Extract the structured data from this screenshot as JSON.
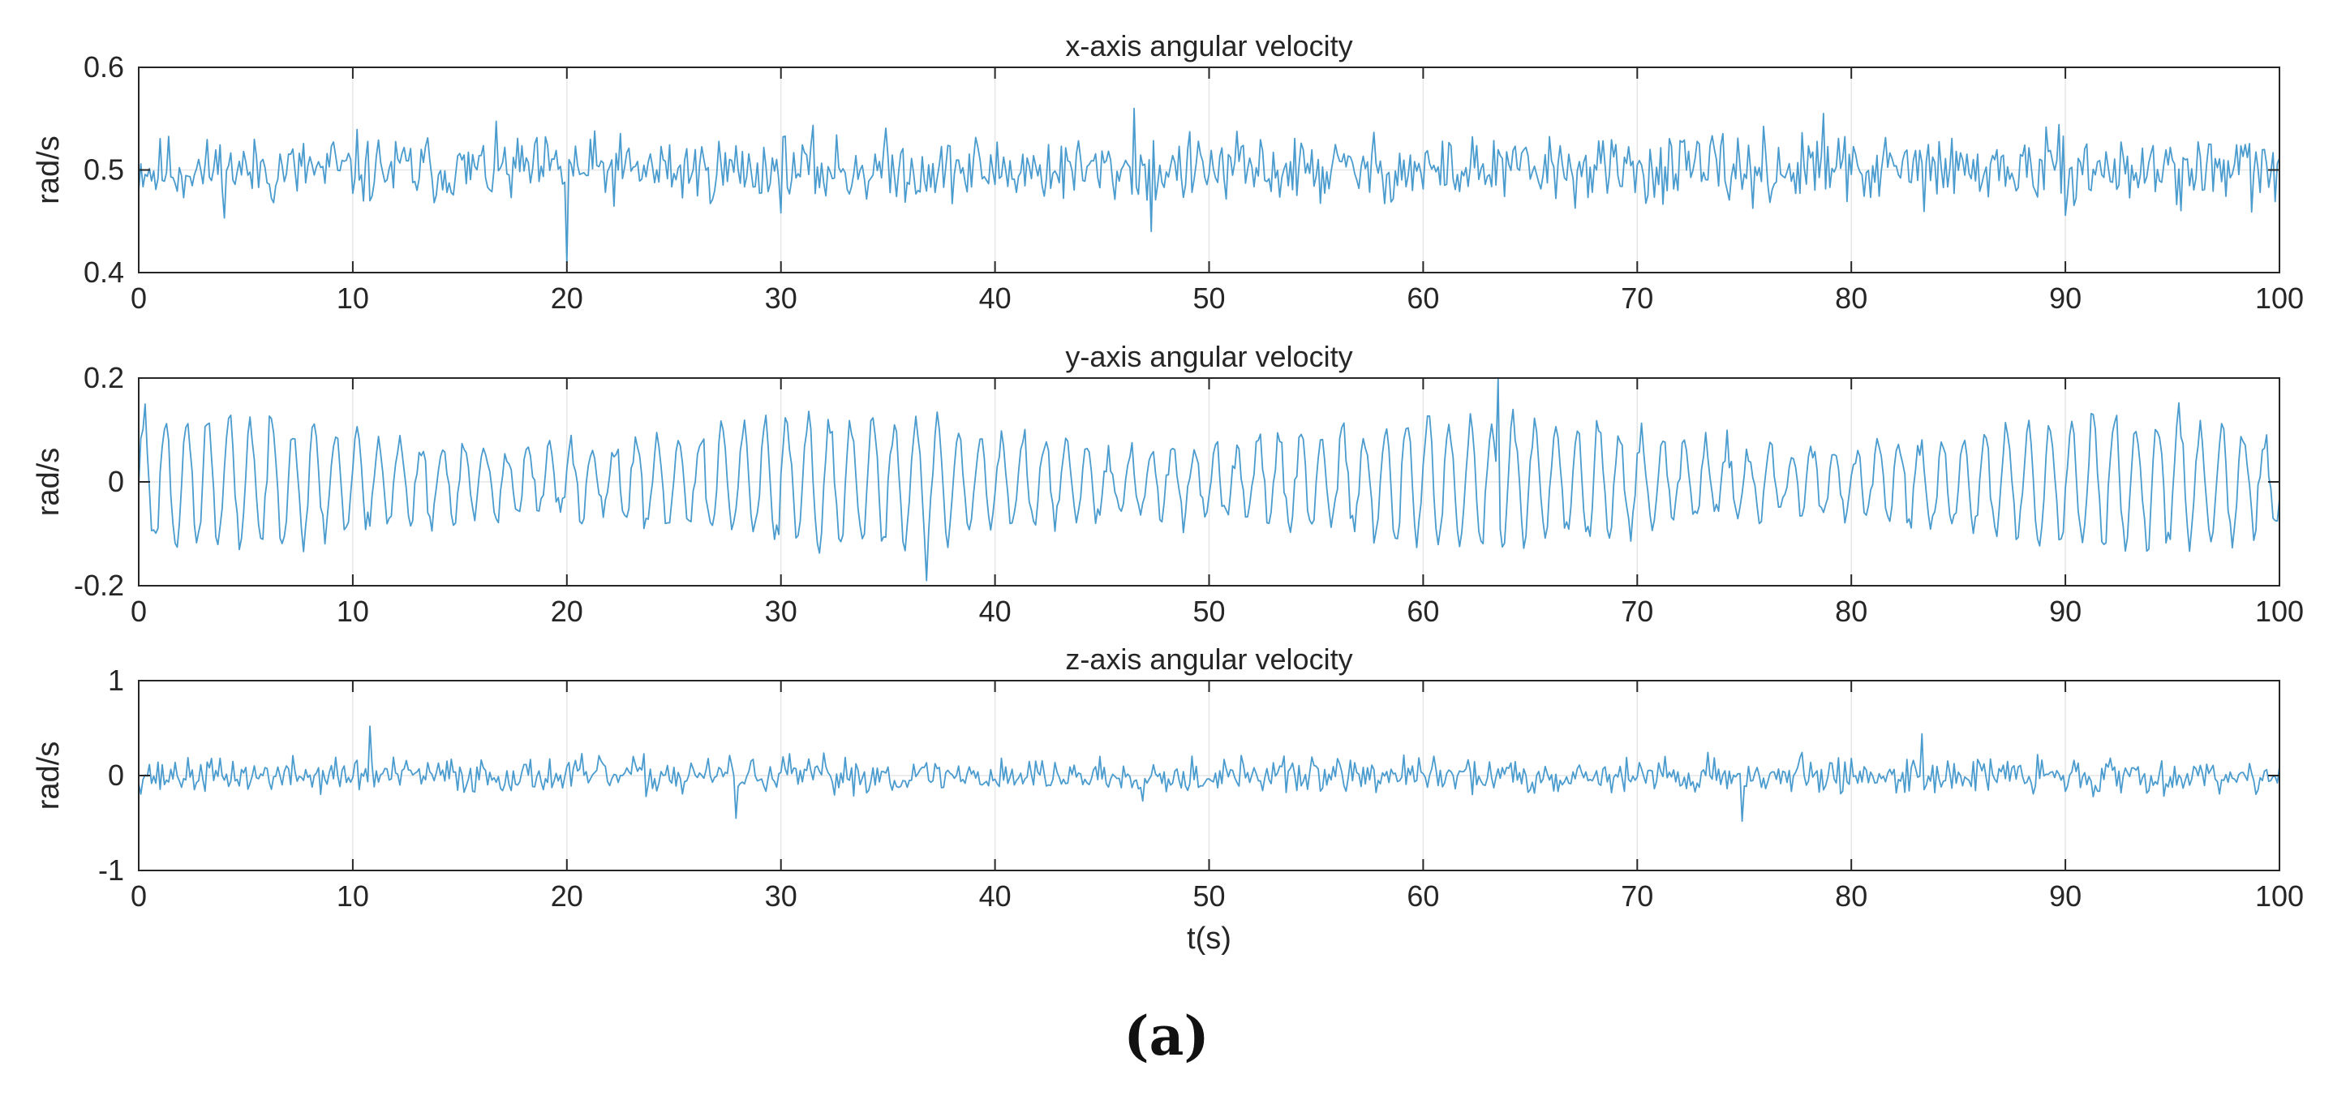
{
  "figure_caption": "(a)",
  "colors": {
    "line": "#4a9bce",
    "axes": "#262626",
    "grid": "#e6e6e6"
  },
  "chart_data": [
    {
      "type": "line",
      "title": "x-axis angular velocity",
      "xlabel": "",
      "ylabel": "rad/s",
      "xlim": [
        0,
        100
      ],
      "ylim": [
        0.4,
        0.6
      ],
      "xticks": [
        0,
        10,
        20,
        30,
        40,
        50,
        60,
        70,
        80,
        90,
        100
      ],
      "xtick_labels": [
        "0",
        "10",
        "20",
        "30",
        "40",
        "50",
        "60",
        "70",
        "80",
        "90",
        "100"
      ],
      "yticks": [
        0.4,
        0.5,
        0.6
      ],
      "ytick_labels": [
        "0.4",
        "0.5",
        "0.6"
      ],
      "grid": true,
      "series": [
        {
          "name": "x-axis angular velocity",
          "mean": 0.5,
          "noise_amplitude": 0.028,
          "oscillation_amplitude": 0.004,
          "oscillation_frequency_hz": 0.9,
          "sample_rate_hz": 10,
          "seed": 11,
          "spikes": [
            {
              "t": 20.0,
              "value": 0.41
            },
            {
              "t": 46.5,
              "value": 0.56
            },
            {
              "t": 47.3,
              "value": 0.44
            },
            {
              "t": 78.7,
              "value": 0.555
            }
          ]
        }
      ]
    },
    {
      "type": "line",
      "title": "y-axis angular velocity",
      "xlabel": "",
      "ylabel": "rad/s",
      "xlim": [
        0,
        100
      ],
      "ylim": [
        -0.2,
        0.2
      ],
      "xticks": [
        0,
        10,
        20,
        30,
        40,
        50,
        60,
        70,
        80,
        90,
        100
      ],
      "xtick_labels": [
        "0",
        "10",
        "20",
        "30",
        "40",
        "50",
        "60",
        "70",
        "80",
        "90",
        "100"
      ],
      "yticks": [
        -0.2,
        0,
        0.2
      ],
      "ytick_labels": [
        "-0.2",
        "0",
        "0.2"
      ],
      "grid": true,
      "series": [
        {
          "name": "y-axis angular velocity",
          "mean": 0.0,
          "noise_amplitude": 0.025,
          "oscillation_amplitude": 0.12,
          "oscillation_frequency_hz": 1.0,
          "sample_rate_hz": 10,
          "seed": 23,
          "spikes": [
            {
              "t": 63.5,
              "value": 0.2
            },
            {
              "t": 36.8,
              "value": -0.19
            },
            {
              "t": 0.3,
              "value": 0.15
            }
          ]
        }
      ]
    },
    {
      "type": "line",
      "title": "z-axis angular velocity",
      "xlabel": "t(s)",
      "ylabel": "rad/s",
      "xlim": [
        0,
        100
      ],
      "ylim": [
        -1,
        1
      ],
      "xticks": [
        0,
        10,
        20,
        30,
        40,
        50,
        60,
        70,
        80,
        90,
        100
      ],
      "xtick_labels": [
        "0",
        "10",
        "20",
        "30",
        "40",
        "50",
        "60",
        "70",
        "80",
        "90",
        "100"
      ],
      "yticks": [
        -1,
        0,
        1
      ],
      "ytick_labels": [
        "-1",
        "0",
        "1"
      ],
      "grid": true,
      "series": [
        {
          "name": "z-axis angular velocity",
          "mean": 0.0,
          "noise_amplitude": 0.16,
          "oscillation_amplitude": 0.03,
          "oscillation_frequency_hz": 0.7,
          "sample_rate_hz": 10,
          "seed": 37,
          "spikes": [
            {
              "t": 10.8,
              "value": 0.52
            },
            {
              "t": 27.9,
              "value": -0.45
            },
            {
              "t": 74.9,
              "value": -0.48
            },
            {
              "t": 83.3,
              "value": 0.44
            }
          ]
        }
      ]
    }
  ]
}
